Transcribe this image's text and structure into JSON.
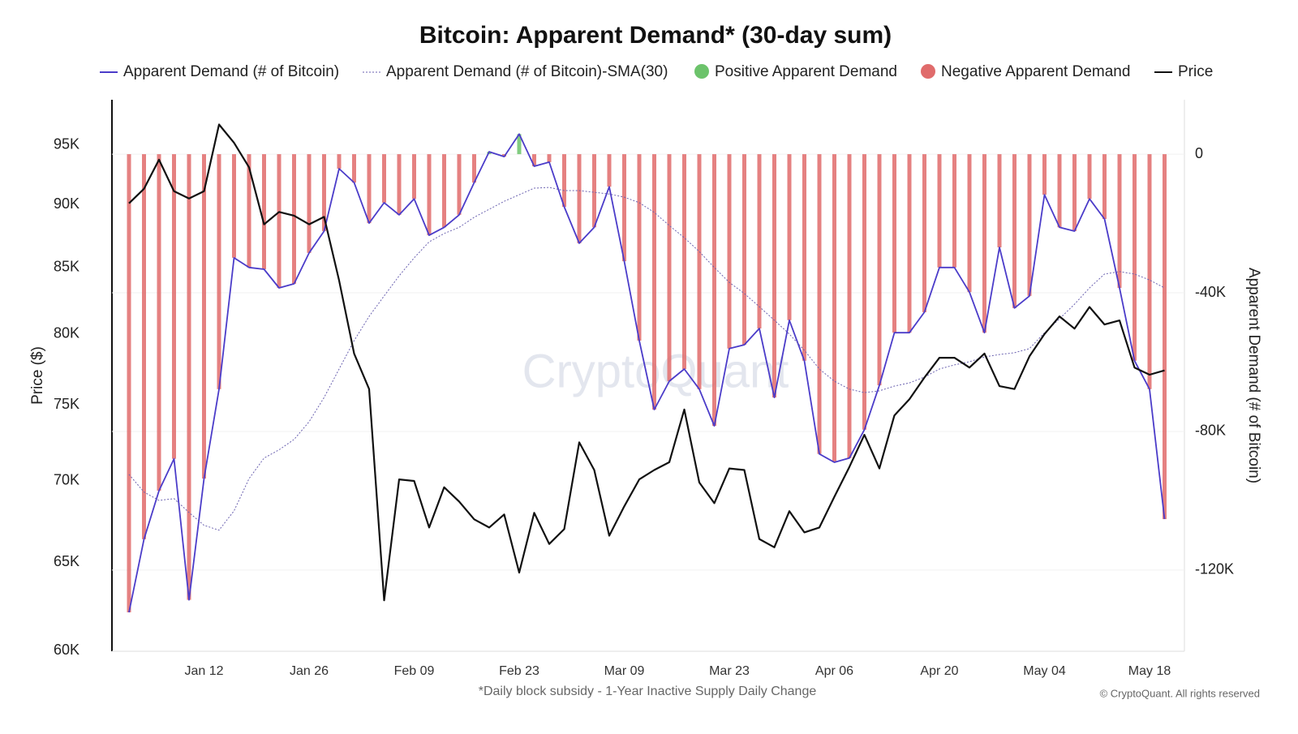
{
  "chart_data": {
    "type": "line",
    "title": "Bitcoin: Apparent Demand* (30-day sum)",
    "y_label": "Price ($)",
    "y2_label": "Apparent Demand (# of Bitcoin)",
    "note": "*Daily block subsidy - 1-Year Inactive Supply Daily Change",
    "credit": "© CryptoQuant. All rights reserved",
    "watermark": "CryptoQuant",
    "categories": [
      null,
      null,
      null,
      null,
      null,
      "Jan 12",
      null,
      null,
      null,
      null,
      null,
      null,
      "Jan 26",
      null,
      null,
      null,
      null,
      null,
      null,
      "Feb 09",
      null,
      null,
      null,
      null,
      null,
      null,
      "Feb 23",
      null,
      null,
      null,
      null,
      null,
      null,
      "Mar 09",
      null,
      null,
      null,
      null,
      null,
      null,
      "Mar 23",
      null,
      null,
      null,
      null,
      null,
      null,
      "Apr 06",
      null,
      null,
      null,
      null,
      null,
      null,
      "Apr 20",
      null,
      null,
      null,
      null,
      null,
      null,
      "May 04",
      null,
      null,
      null,
      null,
      null,
      null,
      "May 18",
      null
    ],
    "series": [
      {
        "name": "Apparent Demand (# of Bitcoin)",
        "color": "#4b3cc9",
        "axis": "y2",
        "values": [
          -132200,
          -111100,
          -97100,
          -87900,
          -128600,
          -93600,
          -67800,
          -29900,
          -32700,
          -33200,
          -38600,
          -37400,
          -28500,
          -22200,
          -4200,
          -8200,
          -19900,
          -14000,
          -17500,
          -12900,
          -23400,
          -21100,
          -17500,
          -8200,
          700,
          -700,
          5800,
          -3500,
          -2300,
          -15200,
          -25700,
          -21100,
          -9400,
          -30900,
          -53800,
          -73700,
          -65500,
          -62000,
          -67800,
          -78400,
          -56100,
          -55000,
          -50300,
          -70200,
          -47900,
          -59600,
          -86500,
          -88900,
          -87700,
          -79500,
          -66700,
          -51500,
          -51500,
          -45600,
          -32700,
          -32700,
          -39800,
          -51500,
          -26900,
          -44400,
          -40900,
          -11700,
          -21100,
          -22200,
          -12900,
          -18700,
          -38600,
          -59600,
          -67800,
          -105300
        ]
      },
      {
        "name": "Apparent Demand (# of Bitcoin)-SMA(30)",
        "color": "#6b62b0",
        "axis": "y2",
        "dashed": true,
        "values": [
          -92400,
          -97500,
          -99900,
          -99400,
          -103400,
          -107100,
          -108500,
          -102900,
          -93600,
          -87700,
          -85300,
          -82300,
          -77200,
          -70200,
          -62000,
          -53800,
          -46800,
          -40900,
          -35100,
          -29900,
          -25300,
          -22900,
          -21100,
          -18200,
          -15900,
          -13600,
          -11700,
          -9800,
          -9600,
          -10500,
          -10500,
          -11000,
          -11500,
          -12400,
          -14000,
          -16800,
          -20600,
          -24100,
          -28100,
          -32700,
          -37000,
          -40200,
          -44000,
          -47900,
          -51900,
          -56600,
          -62000,
          -65500,
          -67800,
          -68800,
          -68300,
          -66900,
          -66000,
          -64300,
          -62000,
          -60800,
          -59900,
          -58500,
          -57800,
          -57300,
          -56100,
          -51500,
          -47500,
          -43300,
          -38600,
          -34600,
          -33900,
          -34600,
          -36300,
          -38600
        ]
      },
      {
        "name": "Price",
        "color": "#111111",
        "axis": "y",
        "values": [
          90100,
          91300,
          93750,
          91100,
          90500,
          91100,
          96800,
          95200,
          93100,
          88400,
          89400,
          89100,
          88400,
          89000,
          84000,
          78600,
          76100,
          62800,
          70100,
          70000,
          67100,
          69600,
          68700,
          67600,
          67100,
          67900,
          64400,
          68000,
          66100,
          67000,
          72500,
          70700,
          66600,
          68400,
          70100,
          70700,
          71200,
          74700,
          69900,
          68600,
          70800,
          70700,
          66400,
          65900,
          68100,
          66800,
          67100,
          69000,
          70900,
          73000,
          70800,
          74300,
          75400,
          76900,
          78300,
          78300,
          77600,
          78600,
          76300,
          76100,
          78400,
          80000,
          81300,
          80400,
          82000,
          80700,
          81000,
          77600,
          77100,
          77400
        ]
      }
    ],
    "sign_legend": [
      {
        "name": "Positive Apparent Demand",
        "color": "#6cc36b"
      },
      {
        "name": "Negative Apparent Demand",
        "color": "#e06b6b"
      }
    ],
    "ylog": true,
    "ylim": [
      60000,
      99000
    ],
    "yticks": [
      {
        "value": 60000,
        "label": "60K"
      },
      {
        "value": 65000,
        "label": "65K"
      },
      {
        "value": 70000,
        "label": "70K"
      },
      {
        "value": 75000,
        "label": "75K"
      },
      {
        "value": 80000,
        "label": "80K"
      },
      {
        "value": 85000,
        "label": "85K"
      },
      {
        "value": 90000,
        "label": "90K"
      },
      {
        "value": 95000,
        "label": "95K"
      }
    ],
    "y2lim": [
      -143200,
      15700
    ],
    "y2ticks": [
      0,
      {
        "value": -40000,
        "label": "-40K"
      },
      {
        "value": -80000,
        "label": "-80K"
      },
      {
        "value": -120000,
        "label": "-120K"
      }
    ],
    "grid": true
  }
}
